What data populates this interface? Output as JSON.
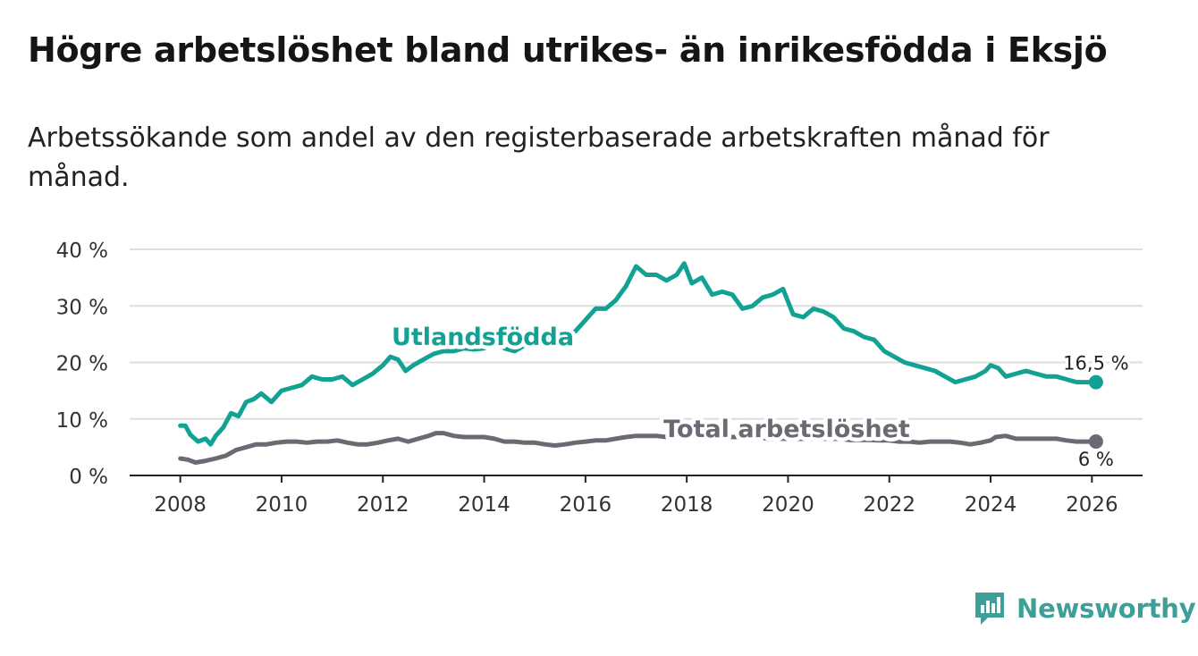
{
  "title": "Högre arbetslöshet bland utrikes- än inrikesfödda i Eksjö",
  "subtitle": "Arbetssökande som andel av den registerbaserade arbetskraften månad för månad.",
  "brand": "Newsworthy",
  "colors": {
    "foreign": "#12a294",
    "total": "#6b6a73",
    "grid": "#dddddd",
    "brand": "#3e9e98"
  },
  "chart_data": {
    "type": "line",
    "title": "Högre arbetslöshet bland utrikes- än inrikesfödda i Eksjö",
    "xlabel": "",
    "ylabel": "",
    "xlim": [
      2007.0,
      2027.0
    ],
    "ylim": [
      0,
      40
    ],
    "y_ticks": [
      0,
      10,
      20,
      30,
      40
    ],
    "y_tick_labels": [
      "0 %",
      "10 %",
      "20 %",
      "30 %",
      "40 %"
    ],
    "x_ticks": [
      2008,
      2010,
      2012,
      2014,
      2016,
      2018,
      2020,
      2022,
      2024,
      2026
    ],
    "x_tick_labels": [
      "2008",
      "2010",
      "2012",
      "2014",
      "2016",
      "2018",
      "2020",
      "2022",
      "2024",
      "2026"
    ],
    "grid": true,
    "series": [
      {
        "name": "Utlandsfödda",
        "label": "Utlandsfödda",
        "end_label": "16,5 %",
        "x": [
          2008.0,
          2008.1,
          2008.2,
          2008.35,
          2008.5,
          2008.6,
          2008.7,
          2008.85,
          2009.0,
          2009.15,
          2009.3,
          2009.45,
          2009.6,
          2009.8,
          2010.0,
          2010.2,
          2010.4,
          2010.6,
          2010.8,
          2011.0,
          2011.2,
          2011.4,
          2011.6,
          2011.8,
          2012.0,
          2012.15,
          2012.3,
          2012.45,
          2012.6,
          2012.8,
          2013.0,
          2013.2,
          2013.4,
          2013.6,
          2013.8,
          2014.0,
          2014.2,
          2014.4,
          2014.6,
          2014.8,
          2015.0,
          2015.2,
          2015.4,
          2015.6,
          2015.8,
          2016.0,
          2016.2,
          2016.4,
          2016.6,
          2016.8,
          2017.0,
          2017.2,
          2017.4,
          2017.6,
          2017.8,
          2017.95,
          2018.1,
          2018.3,
          2018.5,
          2018.7,
          2018.9,
          2019.1,
          2019.3,
          2019.5,
          2019.7,
          2019.9,
          2020.1,
          2020.3,
          2020.5,
          2020.7,
          2020.9,
          2021.1,
          2021.3,
          2021.5,
          2021.7,
          2021.9,
          2022.1,
          2022.3,
          2022.5,
          2022.7,
          2022.9,
          2023.1,
          2023.3,
          2023.5,
          2023.7,
          2023.9,
          2024.0,
          2024.15,
          2024.3,
          2024.5,
          2024.7,
          2024.9,
          2025.1,
          2025.3,
          2025.5,
          2025.7,
          2025.9,
          2026.08
        ],
        "values": [
          8.8,
          8.8,
          7.2,
          6.0,
          6.5,
          5.5,
          7.0,
          8.5,
          11.0,
          10.5,
          13.0,
          13.5,
          14.5,
          13.0,
          15.0,
          15.5,
          16.0,
          17.5,
          17.0,
          17.0,
          17.5,
          16.0,
          17.0,
          18.0,
          19.5,
          21.0,
          20.5,
          18.5,
          19.5,
          20.5,
          21.5,
          22.0,
          22.0,
          22.5,
          22.3,
          22.5,
          23.5,
          22.5,
          22.0,
          23.0,
          23.5,
          23.8,
          24.0,
          24.5,
          25.5,
          27.5,
          29.5,
          29.5,
          31.0,
          33.5,
          37.0,
          35.5,
          35.5,
          34.5,
          35.5,
          37.5,
          34.0,
          35.0,
          32.0,
          32.5,
          32.0,
          29.5,
          30.0,
          31.5,
          32.0,
          33.0,
          28.5,
          28.0,
          29.5,
          29.0,
          28.0,
          26.0,
          25.5,
          24.5,
          24.0,
          22.0,
          21.0,
          20.0,
          19.5,
          19.0,
          18.5,
          17.5,
          16.5,
          17.0,
          17.5,
          18.5,
          19.5,
          19.0,
          17.5,
          18.0,
          18.5,
          18.0,
          17.5,
          17.5,
          17.0,
          16.5,
          16.5,
          16.5
        ]
      },
      {
        "name": "Total arbetslöshet",
        "label": "Total arbetslöshet",
        "end_label": "6 %",
        "x": [
          2008.0,
          2008.15,
          2008.3,
          2008.5,
          2008.7,
          2008.9,
          2009.1,
          2009.3,
          2009.5,
          2009.7,
          2009.9,
          2010.1,
          2010.3,
          2010.5,
          2010.7,
          2010.9,
          2011.1,
          2011.3,
          2011.5,
          2011.7,
          2011.9,
          2012.1,
          2012.3,
          2012.5,
          2012.7,
          2012.9,
          2013.05,
          2013.2,
          2013.4,
          2013.6,
          2013.8,
          2014.0,
          2014.2,
          2014.4,
          2014.6,
          2014.8,
          2015.0,
          2015.2,
          2015.4,
          2015.6,
          2015.8,
          2016.0,
          2016.2,
          2016.4,
          2016.6,
          2016.8,
          2017.0,
          2017.2,
          2017.4,
          2017.6,
          2017.8,
          2018.0,
          2018.2,
          2018.4,
          2018.6,
          2018.8,
          2019.0,
          2019.2,
          2019.4,
          2019.6,
          2019.8,
          2020.0,
          2020.2,
          2020.4,
          2020.6,
          2020.8,
          2021.0,
          2021.2,
          2021.4,
          2021.6,
          2021.8,
          2022.0,
          2022.2,
          2022.4,
          2022.6,
          2022.8,
          2023.0,
          2023.2,
          2023.4,
          2023.6,
          2023.8,
          2024.0,
          2024.1,
          2024.3,
          2024.5,
          2024.7,
          2024.9,
          2025.1,
          2025.3,
          2025.5,
          2025.7,
          2025.9,
          2026.08
        ],
        "values": [
          3.0,
          2.8,
          2.3,
          2.6,
          3.0,
          3.5,
          4.5,
          5.0,
          5.5,
          5.5,
          5.8,
          6.0,
          6.0,
          5.8,
          6.0,
          6.0,
          6.2,
          5.8,
          5.5,
          5.5,
          5.8,
          6.2,
          6.5,
          6.0,
          6.5,
          7.0,
          7.5,
          7.5,
          7.0,
          6.8,
          6.8,
          6.8,
          6.5,
          6.0,
          6.0,
          5.8,
          5.8,
          5.5,
          5.3,
          5.5,
          5.8,
          6.0,
          6.2,
          6.2,
          6.5,
          6.8,
          7.0,
          7.0,
          7.0,
          6.8,
          7.0,
          7.2,
          7.0,
          7.0,
          6.8,
          6.8,
          6.8,
          6.8,
          6.8,
          6.5,
          6.5,
          6.5,
          6.5,
          6.5,
          6.5,
          6.5,
          6.5,
          6.3,
          6.3,
          6.3,
          6.2,
          6.2,
          6.0,
          6.0,
          5.8,
          6.0,
          6.0,
          6.0,
          5.8,
          5.5,
          5.8,
          6.2,
          6.8,
          7.0,
          6.5,
          6.5,
          6.5,
          6.5,
          6.5,
          6.2,
          6.0,
          6.0,
          6.0
        ]
      }
    ]
  }
}
